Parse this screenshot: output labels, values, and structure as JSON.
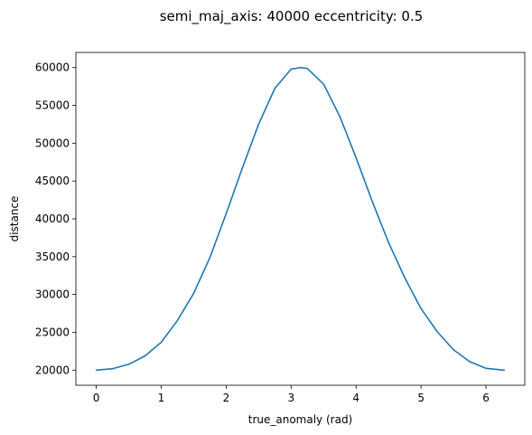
{
  "chart_data": {
    "type": "line",
    "title": "semi_maj_axis: 40000   eccentricity: 0.5",
    "xlabel": "true_anomaly (rad)",
    "ylabel": "distance",
    "xlim": [
      -0.314,
      6.597
    ],
    "ylim": [
      18000,
      62000
    ],
    "x_ticks": [
      0,
      1,
      2,
      3,
      4,
      5,
      6
    ],
    "y_ticks": [
      20000,
      25000,
      30000,
      35000,
      40000,
      45000,
      50000,
      55000,
      60000
    ],
    "grid": false,
    "legend": "none",
    "line_color": "#1f77b4",
    "series": [
      {
        "x": [
          0,
          0.25,
          0.5,
          0.75,
          1.0,
          1.25,
          1.5,
          1.75,
          2.0,
          2.25,
          2.5,
          2.75,
          3.0,
          3.14,
          3.25,
          3.5,
          3.75,
          4.0,
          4.25,
          4.5,
          4.75,
          5.0,
          5.25,
          5.5,
          5.75,
          6.0,
          6.28
        ],
        "y": [
          20000,
          20185,
          20775,
          21873,
          23683,
          26570,
          30158,
          34889,
          40690,
          46750,
          52530,
          57260,
          59800,
          60000,
          59880,
          57810,
          53530,
          48080,
          42280,
          36870,
          32200,
          28140,
          25070,
          22690,
          21120,
          20240,
          20000
        ]
      }
    ]
  }
}
